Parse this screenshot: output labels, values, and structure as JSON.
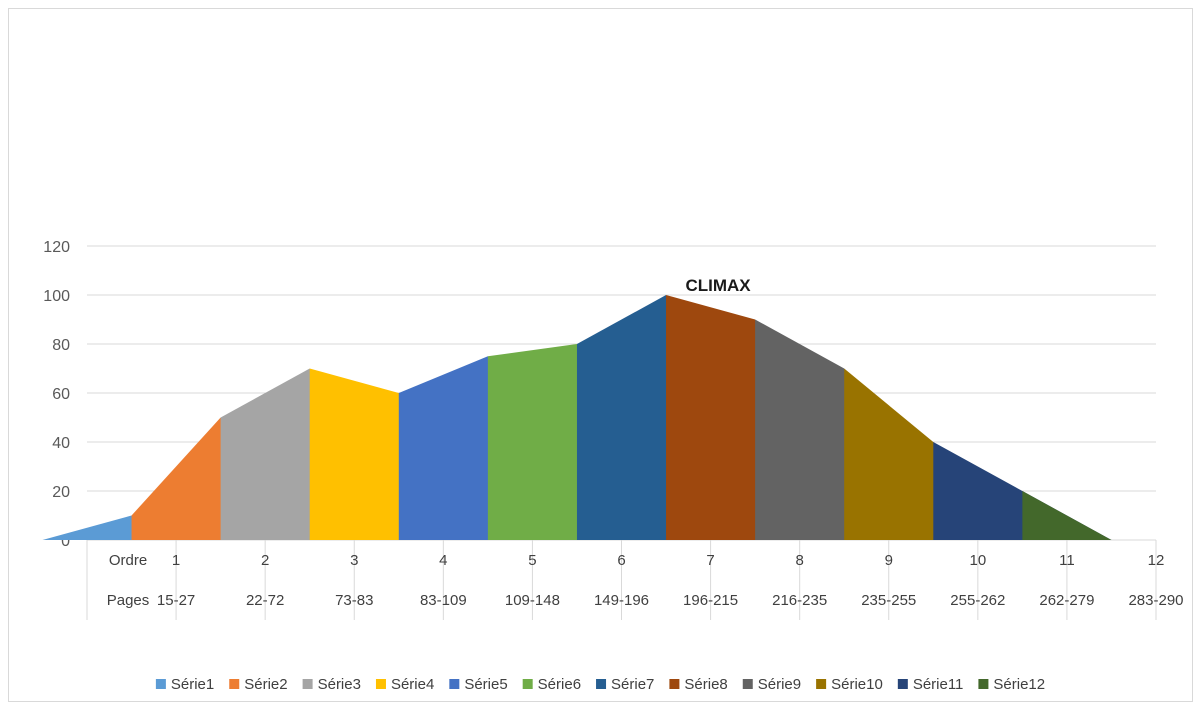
{
  "chart_data": {
    "type": "area",
    "title": "",
    "xlabel": "",
    "ylabel": "",
    "ylim": [
      0,
      120
    ],
    "yticks": [
      0,
      20,
      40,
      60,
      80,
      100,
      120
    ],
    "grid": true,
    "legend_position": "bottom",
    "table_rows": [
      {
        "header": "Ordre",
        "cells": [
          "1",
          "2",
          "3",
          "4",
          "5",
          "6",
          "7",
          "8",
          "9",
          "10",
          "11",
          "12"
        ]
      },
      {
        "header": "Pages",
        "cells": [
          "15-27",
          "22-72",
          "73-83",
          "83-109",
          "109-148",
          "149-196",
          "196-215",
          "216-235",
          "235-255",
          "255-262",
          "262-279",
          "283-290"
        ]
      }
    ],
    "series": [
      {
        "name": "Série1",
        "color": "#5B9BD5",
        "values": [
          0,
          10,
          0
        ]
      },
      {
        "name": "Série2",
        "color": "#ED7D31",
        "values": [
          10,
          50,
          0
        ]
      },
      {
        "name": "Série3",
        "color": "#A5A5A5",
        "values": [
          50,
          70,
          0
        ]
      },
      {
        "name": "Série4",
        "color": "#FFC000",
        "values": [
          70,
          60,
          0
        ]
      },
      {
        "name": "Série5",
        "color": "#4472C4",
        "values": [
          60,
          75,
          0
        ]
      },
      {
        "name": "Série6",
        "color": "#70AD47",
        "values": [
          75,
          80,
          0
        ]
      },
      {
        "name": "Série7",
        "color": "#255E91",
        "values": [
          80,
          100,
          0
        ]
      },
      {
        "name": "Série8",
        "color": "#9E480E",
        "values": [
          100,
          90,
          0
        ]
      },
      {
        "name": "Série9",
        "color": "#636363",
        "values": [
          90,
          70,
          0
        ]
      },
      {
        "name": "Série10",
        "color": "#997300",
        "values": [
          70,
          40,
          0
        ]
      },
      {
        "name": "Série11",
        "color": "#264478",
        "values": [
          40,
          20,
          0
        ]
      },
      {
        "name": "Série12",
        "color": "#43682B",
        "values": [
          20,
          0,
          0
        ]
      }
    ],
    "annotations": [
      {
        "text": "CLIMAX",
        "category_index": 7,
        "y": 100
      }
    ]
  }
}
